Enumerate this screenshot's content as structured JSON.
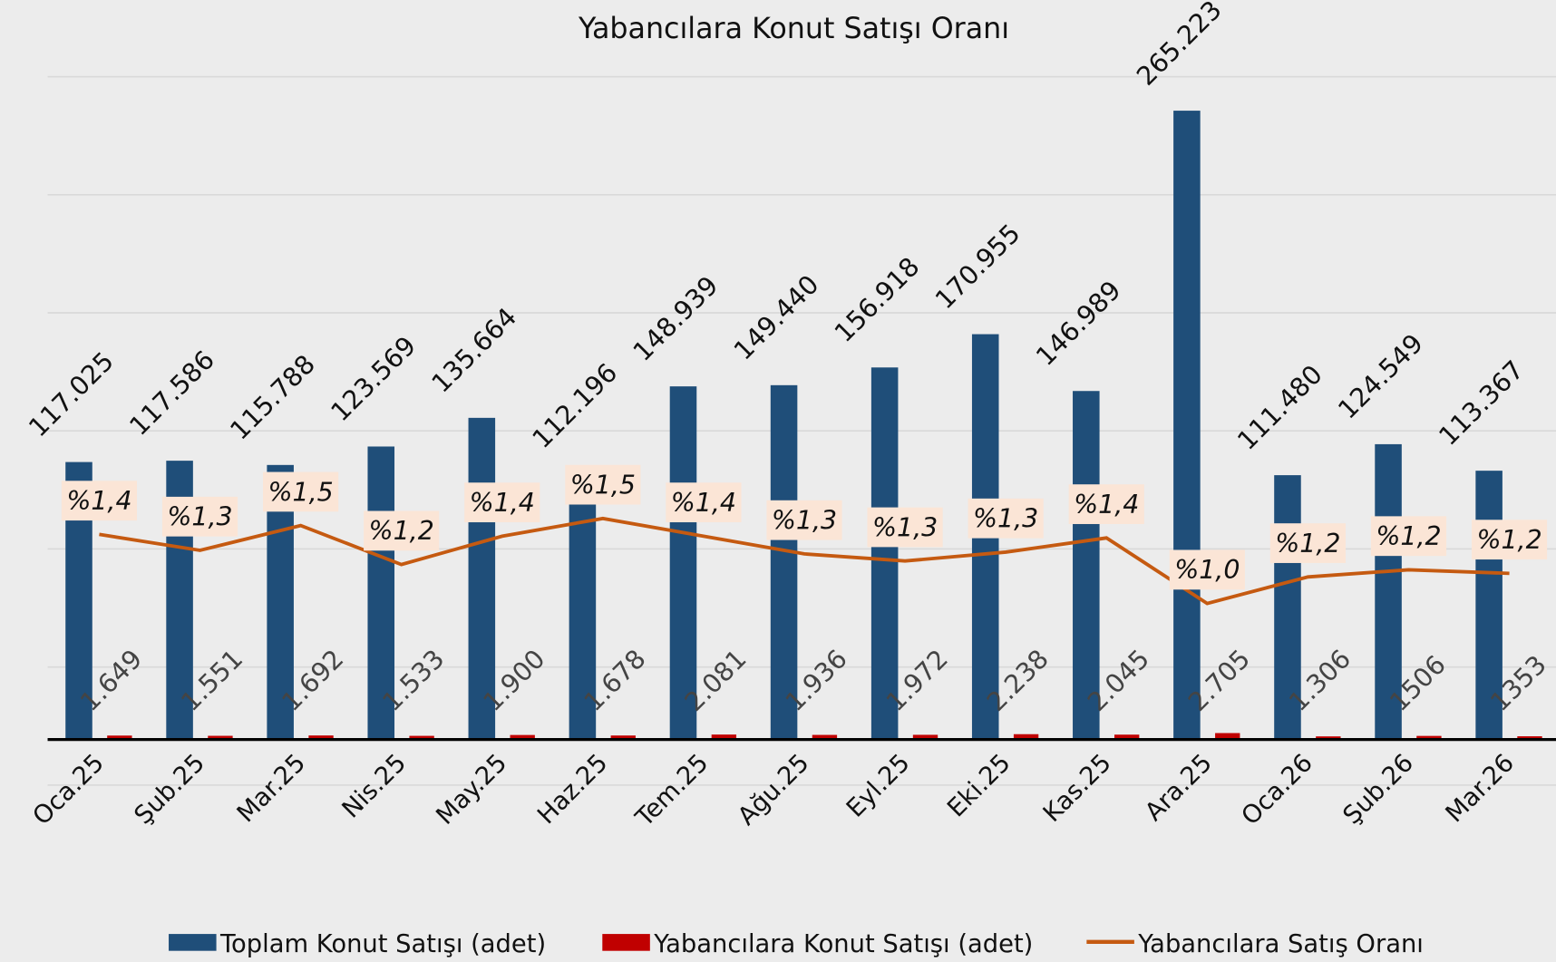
{
  "chart_data": {
    "type": "bar",
    "title": "Yabancılara Konut Satışı Oranı",
    "categories": [
      "Oca.25",
      "Şub.25",
      "Mar.25",
      "Nis.25",
      "May.25",
      "Haz.25",
      "Tem.25",
      "Ağu.25",
      "Eyl.25",
      "Eki.25",
      "Kas.25",
      "Ara.25",
      "Oca.26",
      "Şub.26",
      "Mar.26"
    ],
    "ylim": [
      0,
      280000
    ],
    "y2lim": [
      0,
      4
    ],
    "legend": "bottom",
    "series": [
      {
        "name": "Toplam Konut Satışı (adet)",
        "type": "bar",
        "color": "#1f4e79",
        "values": [
          117025,
          117586,
          115788,
          123569,
          135664,
          112196,
          148939,
          149440,
          156918,
          170955,
          146989,
          265223,
          111480,
          124549,
          113367
        ],
        "value_labels": [
          "117.025",
          "117.586",
          "115.788",
          "123.569",
          "135.664",
          "112.196",
          "148.939",
          "149.440",
          "156.918",
          "170.955",
          "146.989",
          "265.223",
          "111.480",
          "124.549",
          "113.367"
        ]
      },
      {
        "name": "Yabancılara Konut Satışı (adet)",
        "type": "bar",
        "color": "#c00000",
        "values": [
          1649,
          1551,
          1692,
          1533,
          1900,
          1678,
          2081,
          1936,
          1972,
          2238,
          2045,
          2705,
          1306,
          1506,
          1353
        ],
        "value_labels": [
          "1.649",
          "1.551",
          "1.692",
          "1.533",
          "1.900",
          "1.678",
          "2.081",
          "1.936",
          "1.972",
          "2.238",
          "2.045",
          "2.705",
          "1.306",
          "1506",
          "1353"
        ]
      },
      {
        "name": "Yabancılara Satış Oranı",
        "type": "line",
        "axis": "y2",
        "color": "#c55a11",
        "values": [
          1.41,
          1.32,
          1.46,
          1.24,
          1.4,
          1.5,
          1.4,
          1.3,
          1.26,
          1.31,
          1.39,
          1.02,
          1.17,
          1.21,
          1.19
        ],
        "value_labels": [
          "%1,4",
          "%1,3",
          "%1,5",
          "%1,2",
          "%1,4",
          "%1,5",
          "%1,4",
          "%1,3",
          "%1,3",
          "%1,3",
          "%1,4",
          "%1,0",
          "%1,2",
          "%1,2",
          "%1,2"
        ]
      }
    ]
  }
}
